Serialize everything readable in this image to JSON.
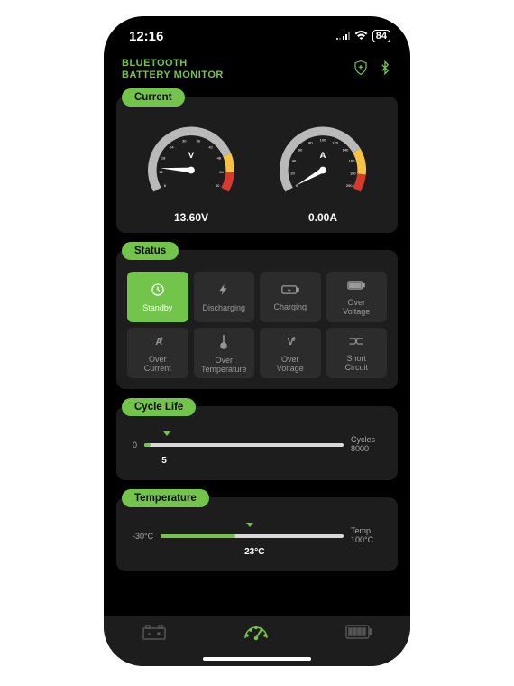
{
  "colors": {
    "accent": "#72c54a",
    "bg_phone": "#000000",
    "panel": "#1d1d1d",
    "tile": "#2c2c2c",
    "tile_text": "#9a9a9a",
    "track": "#d9d9d9",
    "gauge_gray": "#b9b9b9",
    "gauge_yellow": "#f6c245",
    "gauge_red": "#d63a2e",
    "text_white": "#ffffff"
  },
  "statusbar": {
    "time": "12:16",
    "battery_pct": "84"
  },
  "header": {
    "title_line1": "BLUETOOTH",
    "title_line2": "BATTERY MONITOR"
  },
  "sections": {
    "current": {
      "label": "Current"
    },
    "status": {
      "label": "Status"
    },
    "cycle": {
      "label": "Cycle Life"
    },
    "temperature": {
      "label": "Temperature"
    }
  },
  "gauges": {
    "voltage": {
      "unit": "V",
      "value_label": "13.60V",
      "min": 6,
      "max": 60,
      "ticks": [
        6,
        12,
        18,
        24,
        30,
        36,
        42,
        48,
        54,
        60
      ],
      "value": 13.6,
      "zones": [
        {
          "from": 6,
          "to": 48,
          "color": "#b9b9b9"
        },
        {
          "from": 48,
          "to": 54,
          "color": "#f6c245"
        },
        {
          "from": 54,
          "to": 60,
          "color": "#d63a2e"
        }
      ],
      "tick_fontsize": 4.2
    },
    "amperage": {
      "unit": "A",
      "value_label": "0.00A",
      "min": 0,
      "max": 200,
      "ticks": [
        0,
        20,
        40,
        60,
        80,
        100,
        120,
        140,
        160,
        180,
        200
      ],
      "value": 0,
      "zones": [
        {
          "from": 0,
          "to": 150,
          "color": "#b9b9b9"
        },
        {
          "from": 150,
          "to": 180,
          "color": "#f6c245"
        },
        {
          "from": 180,
          "to": 200,
          "color": "#d63a2e"
        }
      ],
      "tick_fontsize": 4.2
    },
    "start_angle": -210,
    "end_angle": 30
  },
  "status_tiles": [
    {
      "name": "standby",
      "label": "Standby",
      "icon": "clock",
      "active": true
    },
    {
      "name": "discharging",
      "label": "Discharging",
      "icon": "bolt",
      "active": false
    },
    {
      "name": "charging",
      "label": "Charging",
      "icon": "battery-charge",
      "active": false
    },
    {
      "name": "over-voltage",
      "label": "Over\nVoltage",
      "icon": "battery-full",
      "active": false
    },
    {
      "name": "over-current",
      "label": "Over\nCurrent",
      "icon": "a-up",
      "active": false
    },
    {
      "name": "over-temperature",
      "label": "Over\nTemperature",
      "icon": "thermo",
      "active": false
    },
    {
      "name": "over-voltage-2",
      "label": "Over\nVoltage",
      "icon": "v-up",
      "active": false
    },
    {
      "name": "short-circuit",
      "label": "Short\nCircuit",
      "icon": "short",
      "active": false
    }
  ],
  "cycle_bar": {
    "min_label": "0",
    "max_lines": [
      "Cycles",
      "8000"
    ],
    "min": 0,
    "max": 8000,
    "value": 5,
    "value_label": "5",
    "fill_pct": 3
  },
  "temp_bar": {
    "min_label": "-30°C",
    "max_lines": [
      "Temp",
      "100°C"
    ],
    "min": -30,
    "max": 100,
    "value": 23,
    "value_label": "23°C",
    "fill_pct": 41
  },
  "tabs": [
    {
      "name": "battery-tab",
      "icon": "battery-terminals",
      "active": false
    },
    {
      "name": "dashboard-tab",
      "icon": "gauge",
      "active": true
    },
    {
      "name": "capacity-tab",
      "icon": "battery-bars",
      "active": false
    }
  ]
}
